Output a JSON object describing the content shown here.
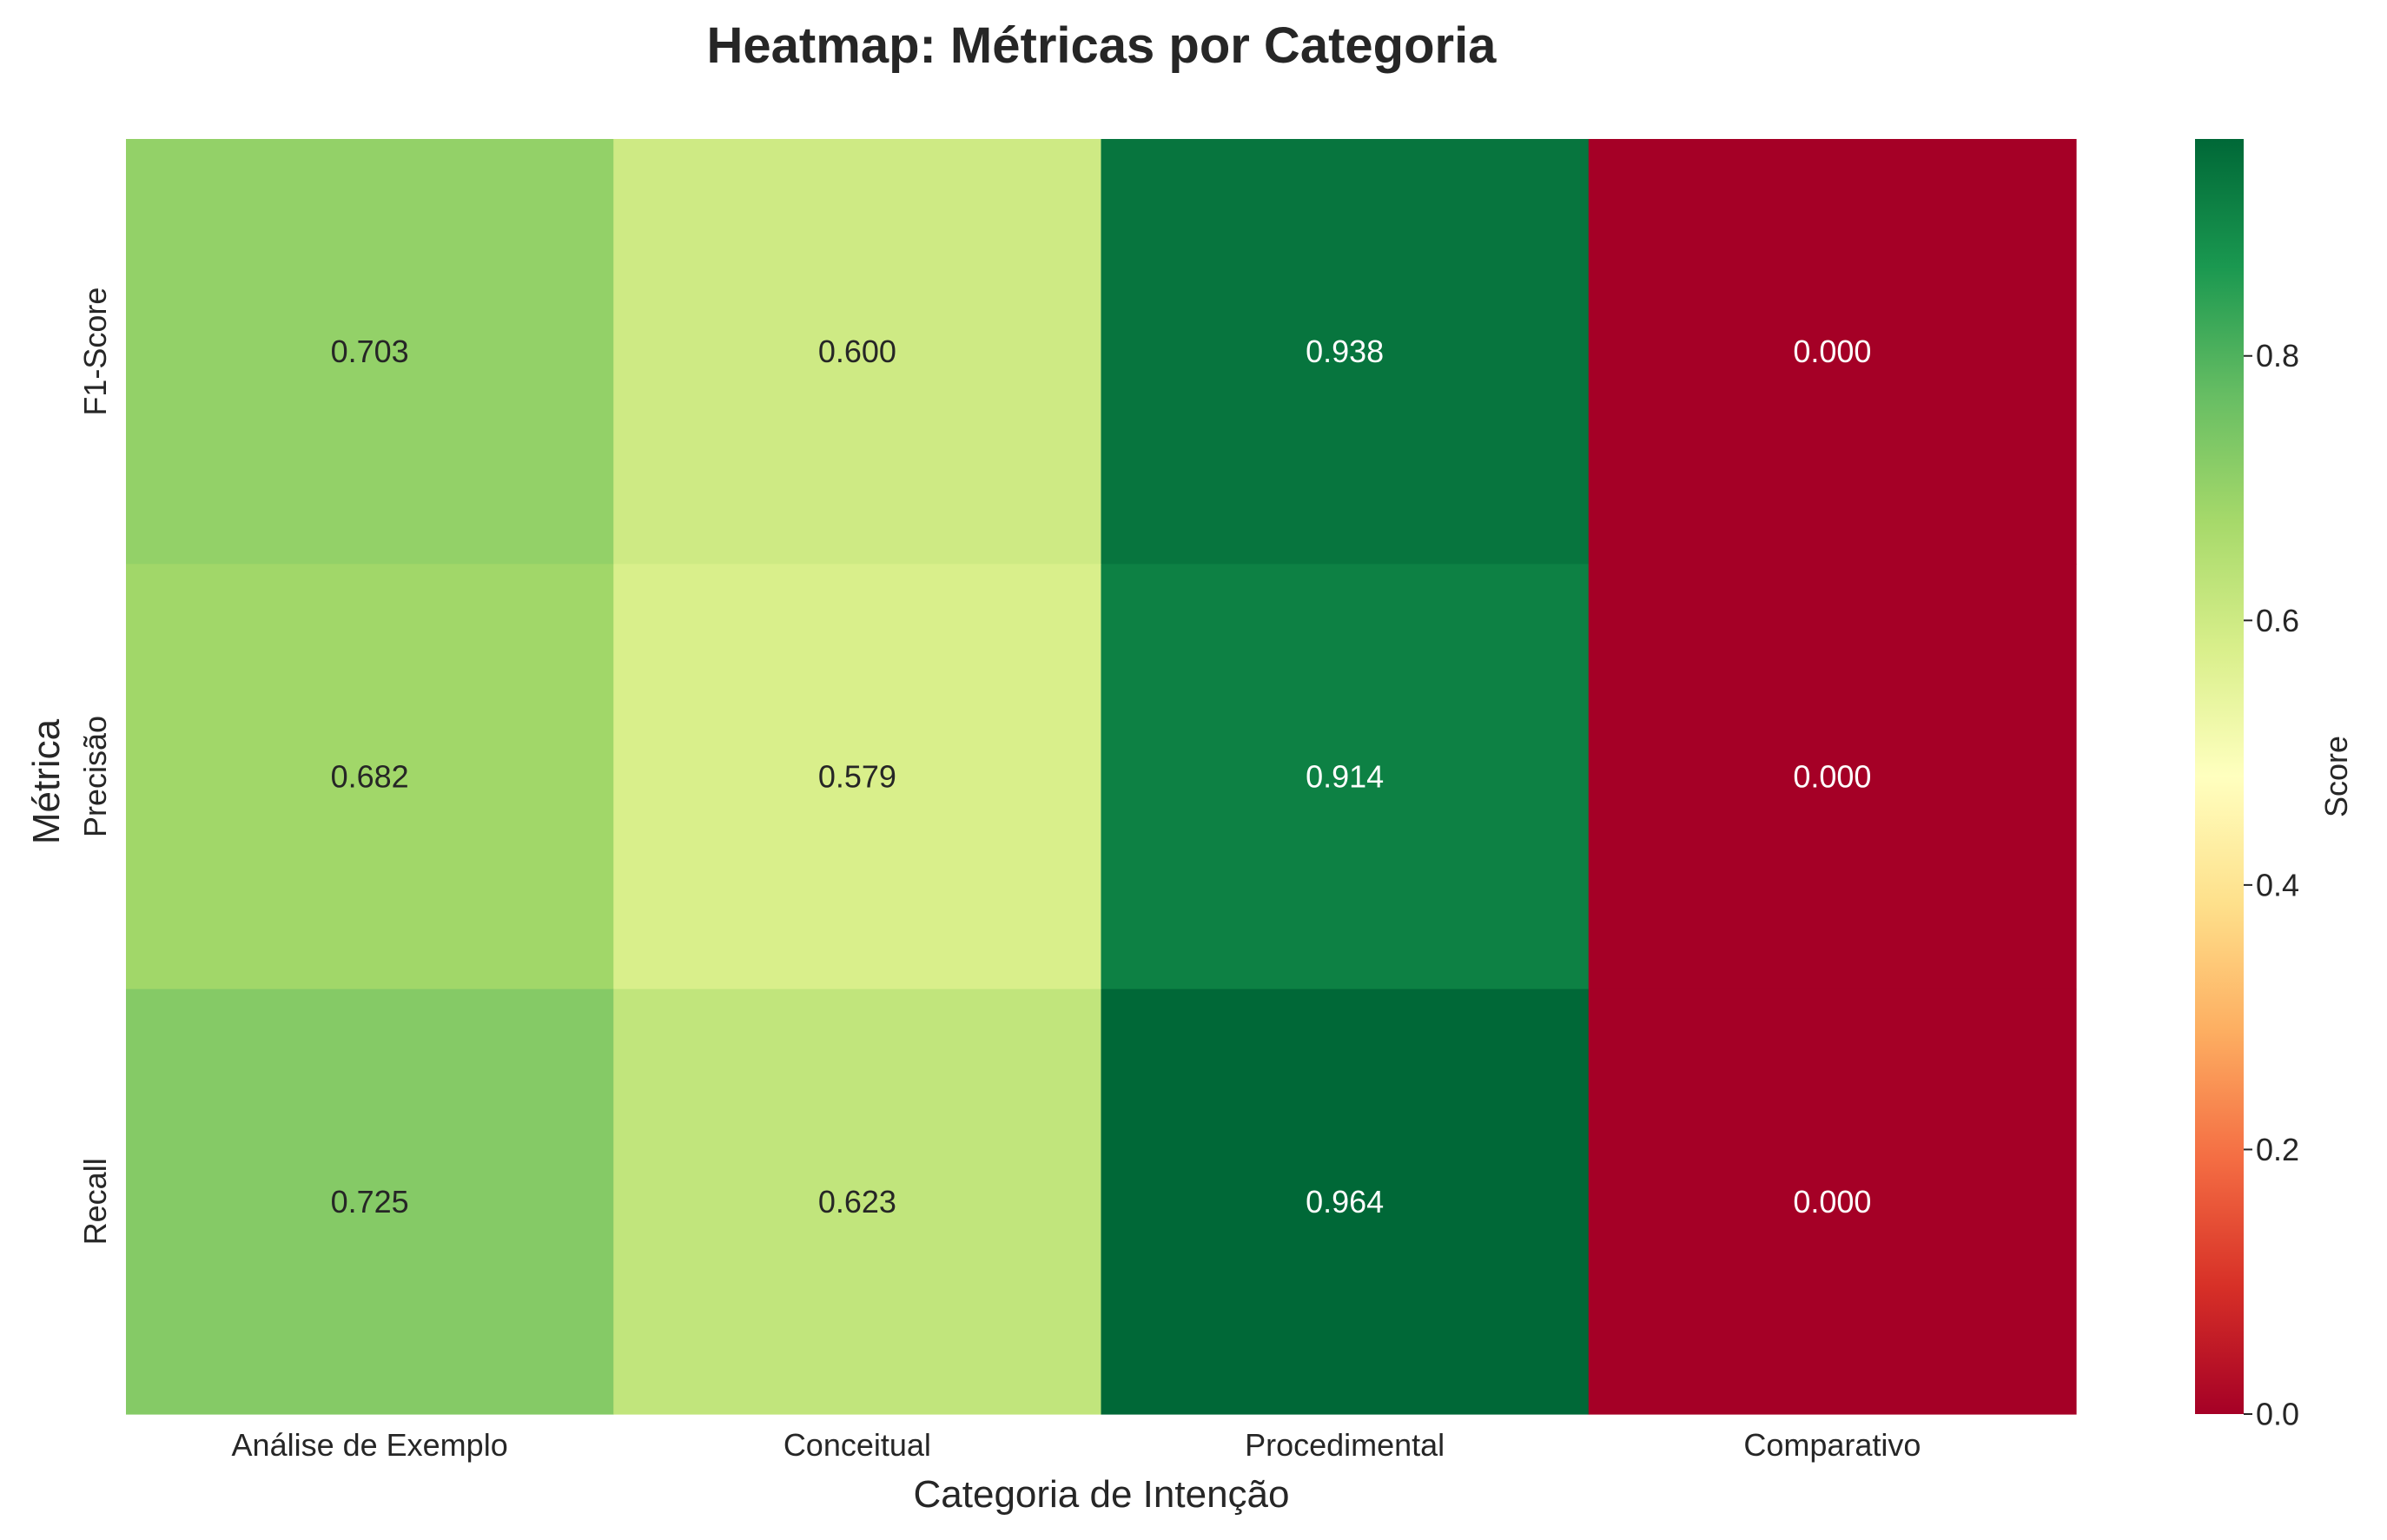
{
  "chart_data": {
    "type": "heatmap",
    "title": "Heatmap: Métricas por Categoria",
    "xlabel": "Categoria de Intenção",
    "ylabel": "Métrica",
    "x_categories": [
      "Análise de Exemplo",
      "Conceitual",
      "Procedimental",
      "Comparativo"
    ],
    "y_categories": [
      "F1-Score",
      "Precisão",
      "Recall"
    ],
    "values": [
      [
        0.703,
        0.6,
        0.938,
        0.0
      ],
      [
        0.682,
        0.579,
        0.914,
        0.0
      ],
      [
        0.725,
        0.623,
        0.964,
        0.0
      ]
    ],
    "value_labels": [
      [
        "0.703",
        "0.600",
        "0.938",
        "0.000"
      ],
      [
        "0.682",
        "0.579",
        "0.914",
        "0.000"
      ],
      [
        "0.725",
        "0.623",
        "0.964",
        "0.000"
      ]
    ],
    "colormap": "RdYlGn",
    "colorbar": {
      "label": "Score",
      "range": [
        0.0,
        0.964
      ],
      "ticks": [
        0.0,
        0.2,
        0.4,
        0.6,
        0.8
      ],
      "tick_labels": [
        "0.0",
        "0.2",
        "0.4",
        "0.6",
        "0.8"
      ]
    },
    "grid": false
  }
}
